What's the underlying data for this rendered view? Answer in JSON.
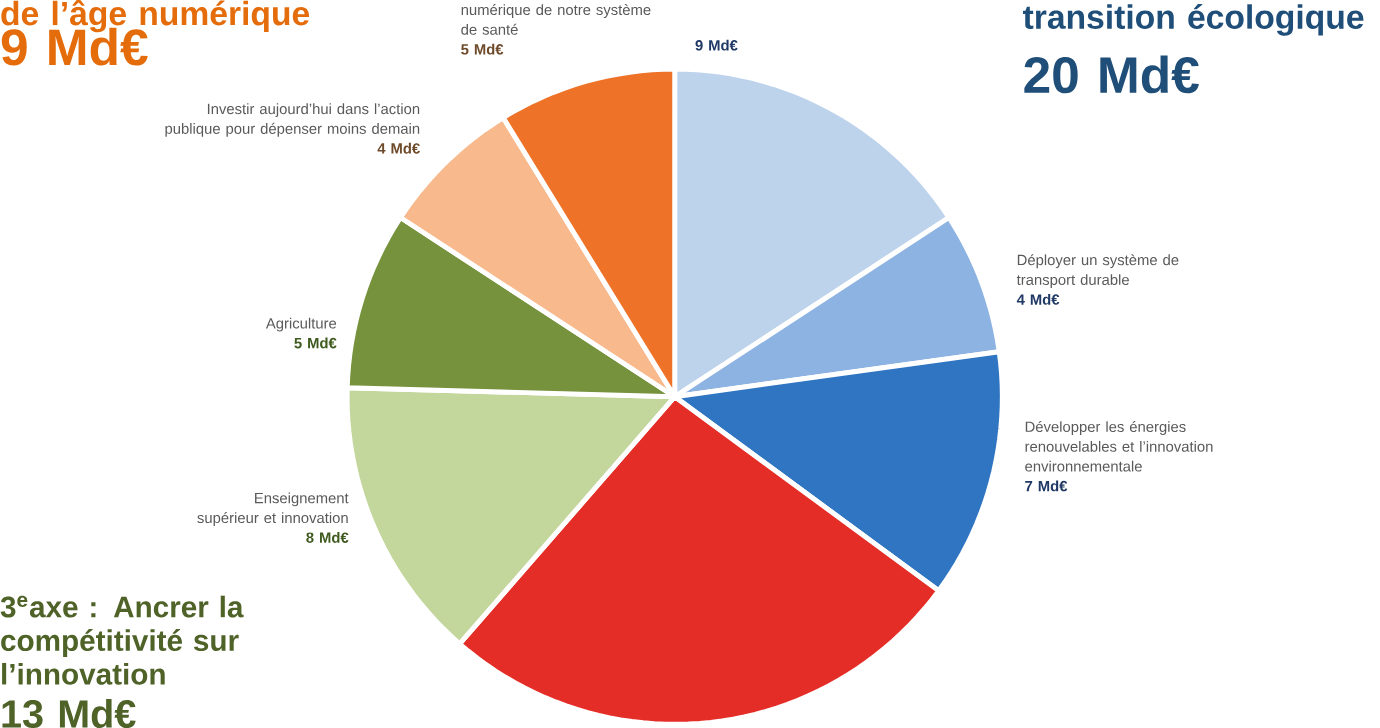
{
  "chart_data": {
    "type": "pie",
    "categories": [
      null,
      "Déployer un système de transport durable",
      "Développer les énergies renouvelables et l’innovation environnementale",
      null,
      "Enseignement supérieur et innovation",
      "Agriculture",
      "Investir aujourd’hui dans l’action publique pour dépenser moins demain",
      "numérique de notre système de santé"
    ],
    "values": [
      9,
      4,
      7,
      15,
      8,
      5,
      4,
      5
    ],
    "value_labels": [
      "9 Md€",
      "4 Md€",
      "7 Md€",
      null,
      "8 Md€",
      "5 Md€",
      "4 Md€",
      "5 Md€"
    ],
    "colors": [
      "#bdd3ec",
      "#8db3e2",
      "#2f75c1",
      "#e52d27",
      "#c3d69b",
      "#76923c",
      "#f8b98c",
      "#ee7228"
    ],
    "annotations": [
      "de l’âge numérique",
      "9 Md€",
      "transition écologique",
      "20 Md€",
      "3$^{e}$axe : Ancrer la compétitivité sur l’innovation",
      "13 Md€"
    ]
  }
}
